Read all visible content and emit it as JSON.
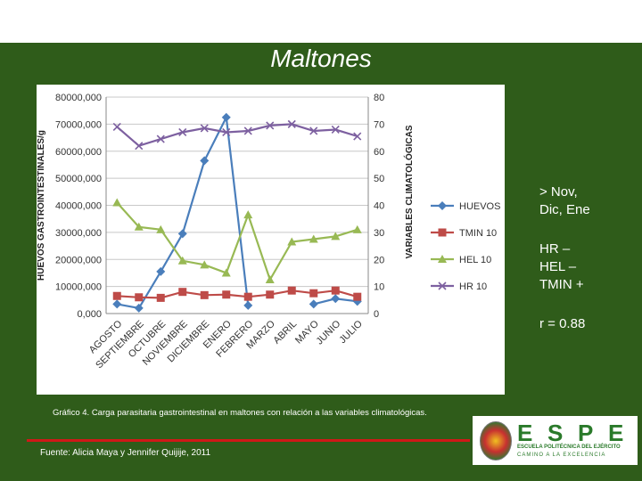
{
  "slide": {
    "title": "Maltones",
    "notes": [
      "> Nov,\nDic, Ene",
      "HR –\nHEL –\nTMIN +",
      "r = 0.88"
    ],
    "caption": "Gráfico 4.  Carga parasitaria gastrointestinal en maltones con relación a las variables climatológicas.",
    "source": "Fuente: Alicia Maya y Jennifer Quijije, 2011",
    "logo": {
      "letters": [
        "E",
        "S",
        "P",
        "E"
      ],
      "line1": "ESCUELA POLITÉCNICA DEL EJÉRCITO",
      "line2": "CAMINO A LA EXCELENCIA"
    }
  },
  "colors": {
    "background": "#2f5c1a",
    "HUEVOS": "#4a7ebb",
    "TMIN 10": "#be4b48",
    "HEL 10": "#98b954",
    "HR 10": "#7d60a0"
  },
  "chart_data": {
    "type": "line",
    "categories": [
      "AGOSTO",
      "SEPTIEMBRE",
      "OCTUBRE",
      "NOVIEMBRE",
      "DICIEMBRE",
      "ENERO",
      "FEBRERO",
      "MARZO",
      "ABRIL",
      "MAYO",
      "JUNIO",
      "JULIO"
    ],
    "y_left": {
      "label": "HUEVOS GASTROINTESTINALES/g",
      "range": [
        0,
        80000
      ],
      "ticks": [
        "0,000",
        "10000,000",
        "20000,000",
        "30000,000",
        "40000,000",
        "50000,000",
        "60000,000",
        "70000,000",
        "80000,000"
      ]
    },
    "y_right": {
      "label": "VARIABLES CLIMATOLÓGICAS",
      "range": [
        0,
        80
      ],
      "ticks": [
        "0",
        "10",
        "20",
        "30",
        "40",
        "50",
        "60",
        "70",
        "80"
      ]
    },
    "grid": true,
    "legend_position": "right",
    "series": [
      {
        "name": "HUEVOS",
        "axis": "left",
        "marker": "diamond",
        "values": [
          3500,
          2000,
          15500,
          29500,
          56500,
          72500,
          3000,
          null,
          null,
          3500,
          5500,
          4500
        ]
      },
      {
        "name": "TMIN 10",
        "axis": "right",
        "marker": "square",
        "values": [
          6.5,
          6,
          5.8,
          8,
          6.8,
          7,
          6.2,
          7,
          8.5,
          7.5,
          8.5,
          6.2
        ]
      },
      {
        "name": "HEL 10",
        "axis": "right",
        "marker": "triangle",
        "values": [
          41,
          32,
          31,
          19.5,
          18,
          15,
          36.5,
          12.5,
          26.5,
          27.5,
          28.5,
          31
        ]
      },
      {
        "name": "HR 10",
        "axis": "right",
        "marker": "cross",
        "values": [
          69,
          62,
          64.5,
          67,
          68.5,
          67,
          67.5,
          69.5,
          70,
          67.5,
          68,
          65.5
        ]
      }
    ]
  }
}
